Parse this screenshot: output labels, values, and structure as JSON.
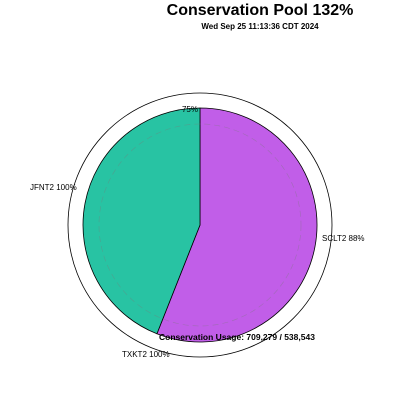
{
  "header": {
    "title": "Conservation Pool 132%",
    "subtitle": "Wed Sep 25 11:13:36 CDT 2024"
  },
  "chart_data": {
    "type": "pie",
    "title": "Conservation Pool 132%",
    "subtitle": "Wed Sep 25 11:13:36 CDT 2024",
    "slices": [
      {
        "name": "SCLT2",
        "label": "SCLT2 88%",
        "share": 0.56,
        "color": "#c15ee8"
      },
      {
        "name": "TXKT2",
        "label": "TXKT2 100%",
        "share": 0.0,
        "color": "#28c3a3"
      },
      {
        "name": "JFNT2",
        "label": "JFNT2 100%",
        "share": 0.44,
        "color": "#28c3a3"
      }
    ],
    "ring_label": "75%",
    "usage_label": "Conservation Usage: 709,279 / 538,543",
    "usage_value": 709279,
    "capacity_value": 538543
  }
}
